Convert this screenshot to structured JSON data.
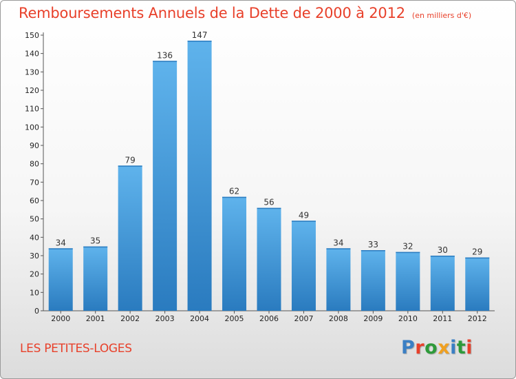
{
  "title": "Remboursements Annuels de la Dette de 2000 à 2012",
  "unit": "(en milliers d'€)",
  "commune": "LES PETITES-LOGES",
  "logo": {
    "text": "Proxiti",
    "letter_colors": [
      "#3a7fc4",
      "#e8402a",
      "#2e9a3a",
      "#f0a020",
      "#3a7fc4",
      "#2e9a3a",
      "#e8402a"
    ]
  },
  "colors": {
    "title": "#e8402a",
    "bar_top": "#5fb3ec",
    "bar_bottom": "#2a7bbf"
  },
  "chart_data": {
    "type": "bar",
    "title": "Remboursements Annuels de la Dette de 2000 à 2012",
    "categories": [
      "2000",
      "2001",
      "2002",
      "2003",
      "2004",
      "2005",
      "2006",
      "2007",
      "2008",
      "2009",
      "2010",
      "2011",
      "2012"
    ],
    "values": [
      34,
      35,
      79,
      136,
      147,
      62,
      56,
      49,
      34,
      33,
      32,
      30,
      29
    ],
    "ylim": [
      0,
      150
    ],
    "yticks": [
      0,
      10,
      20,
      30,
      40,
      50,
      60,
      70,
      80,
      90,
      100,
      110,
      120,
      130,
      140,
      150
    ],
    "grid": false,
    "data_labels": true
  }
}
